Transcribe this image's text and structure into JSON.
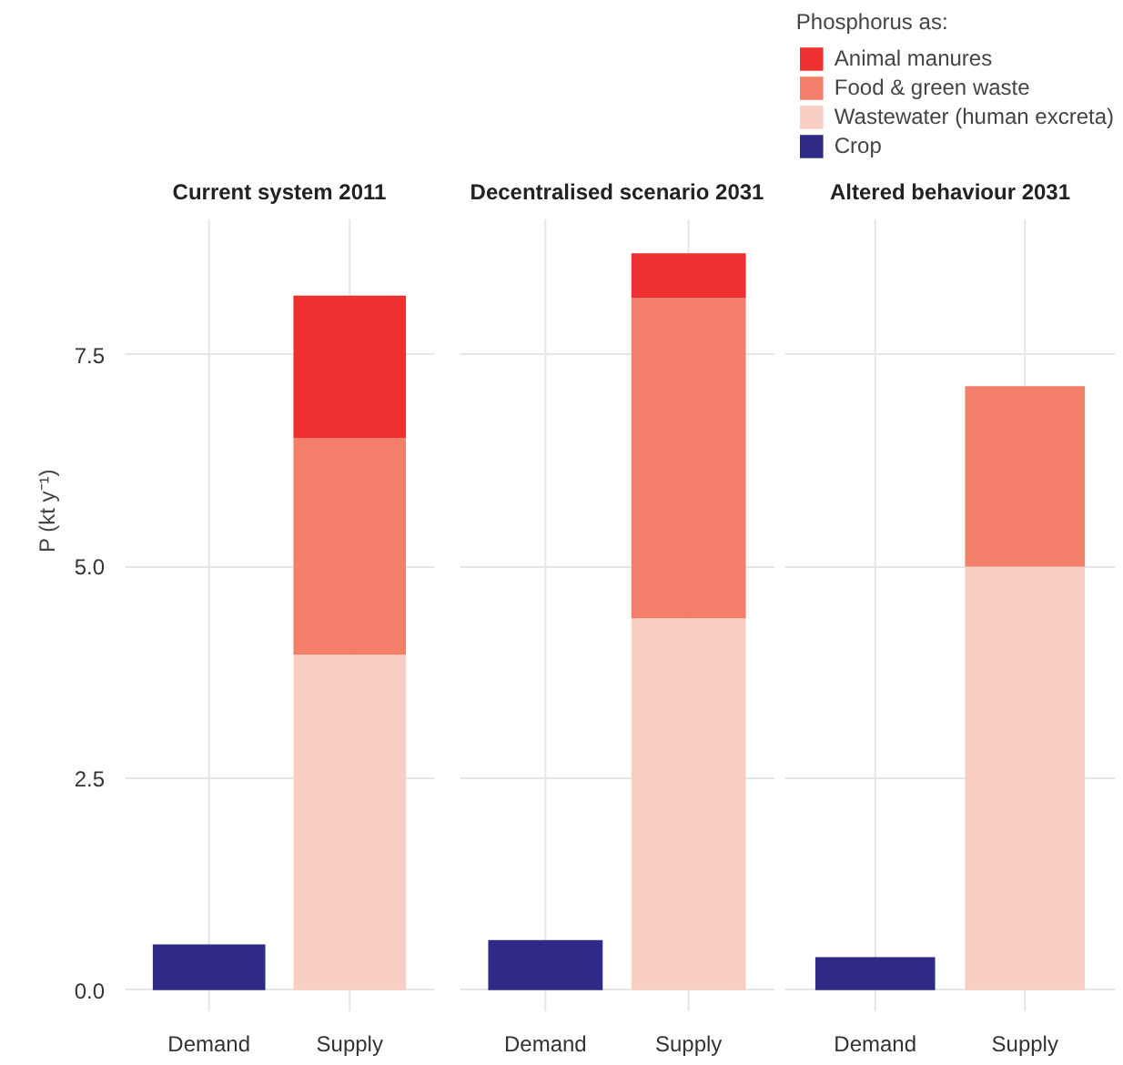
{
  "chart_data": [
    {
      "type": "bar",
      "title": "Current system 2011",
      "ylabel": "P (kt y⁻¹)",
      "stacked": true,
      "grid": true,
      "categories": [
        "Demand",
        "Supply"
      ],
      "ylim": [
        -0.25,
        9.1
      ],
      "yticks": [
        {
          "value": 0,
          "label": "0.0"
        },
        {
          "value": 2.5,
          "label": "2.5"
        },
        {
          "value": 5,
          "label": "5.0"
        },
        {
          "value": 7.5,
          "label": "7.5"
        }
      ],
      "series": [
        {
          "color": "#2e2a85",
          "values": [
            0.54,
            null
          ]
        },
        {
          "color": "#f9cfc3",
          "values": [
            null,
            3.96
          ]
        },
        {
          "color": "#f37e6a",
          "values": [
            null,
            2.56
          ]
        },
        {
          "color": "#ee3130",
          "values": [
            null,
            1.68
          ]
        }
      ]
    },
    {
      "type": "bar",
      "title": "Decentralised scenario 2031",
      "stacked": true,
      "grid": true,
      "tick_labels": "x",
      "categories": [
        "Demand",
        "Supply"
      ],
      "ylim": [
        -0.25,
        9.1
      ],
      "yticks": [
        {
          "value": 0,
          "label": null
        },
        {
          "value": 2.5,
          "label": null
        },
        {
          "value": 5,
          "label": null
        },
        {
          "value": 7.5,
          "label": null
        }
      ],
      "series": [
        {
          "color": "#2e2a85",
          "values": [
            0.59,
            null
          ]
        },
        {
          "color": "#f9cfc3",
          "values": [
            null,
            4.39
          ]
        },
        {
          "color": "#f37e6a",
          "values": [
            null,
            3.78
          ]
        },
        {
          "color": "#ee3130",
          "values": [
            null,
            0.53
          ]
        }
      ]
    },
    {
      "type": "bar",
      "title": "Altered behaviour 2031",
      "stacked": true,
      "grid": true,
      "tick_labels": "x",
      "legend": "top right",
      "legend_title": "Phosphorus as:",
      "categories": [
        "Demand",
        "Supply"
      ],
      "ylim": [
        -0.25,
        9.1
      ],
      "yticks": [
        {
          "value": 0,
          "label": null
        },
        {
          "value": 2.5,
          "label": null
        },
        {
          "value": 5,
          "label": null
        },
        {
          "value": 7.5,
          "label": null
        }
      ],
      "series": [
        {
          "name": "Crop",
          "color": "#2e2a85",
          "values": [
            0.39,
            null
          ]
        },
        {
          "name": "Wastewater (human excreta)",
          "color": "#f9cfc3",
          "values": [
            null,
            5.0
          ]
        },
        {
          "name": "Food & green waste",
          "color": "#f37e6a",
          "values": [
            null,
            2.13
          ]
        },
        {
          "name": "Animal manures",
          "color": "#ee3130",
          "values": [
            null,
            null
          ]
        }
      ]
    }
  ]
}
